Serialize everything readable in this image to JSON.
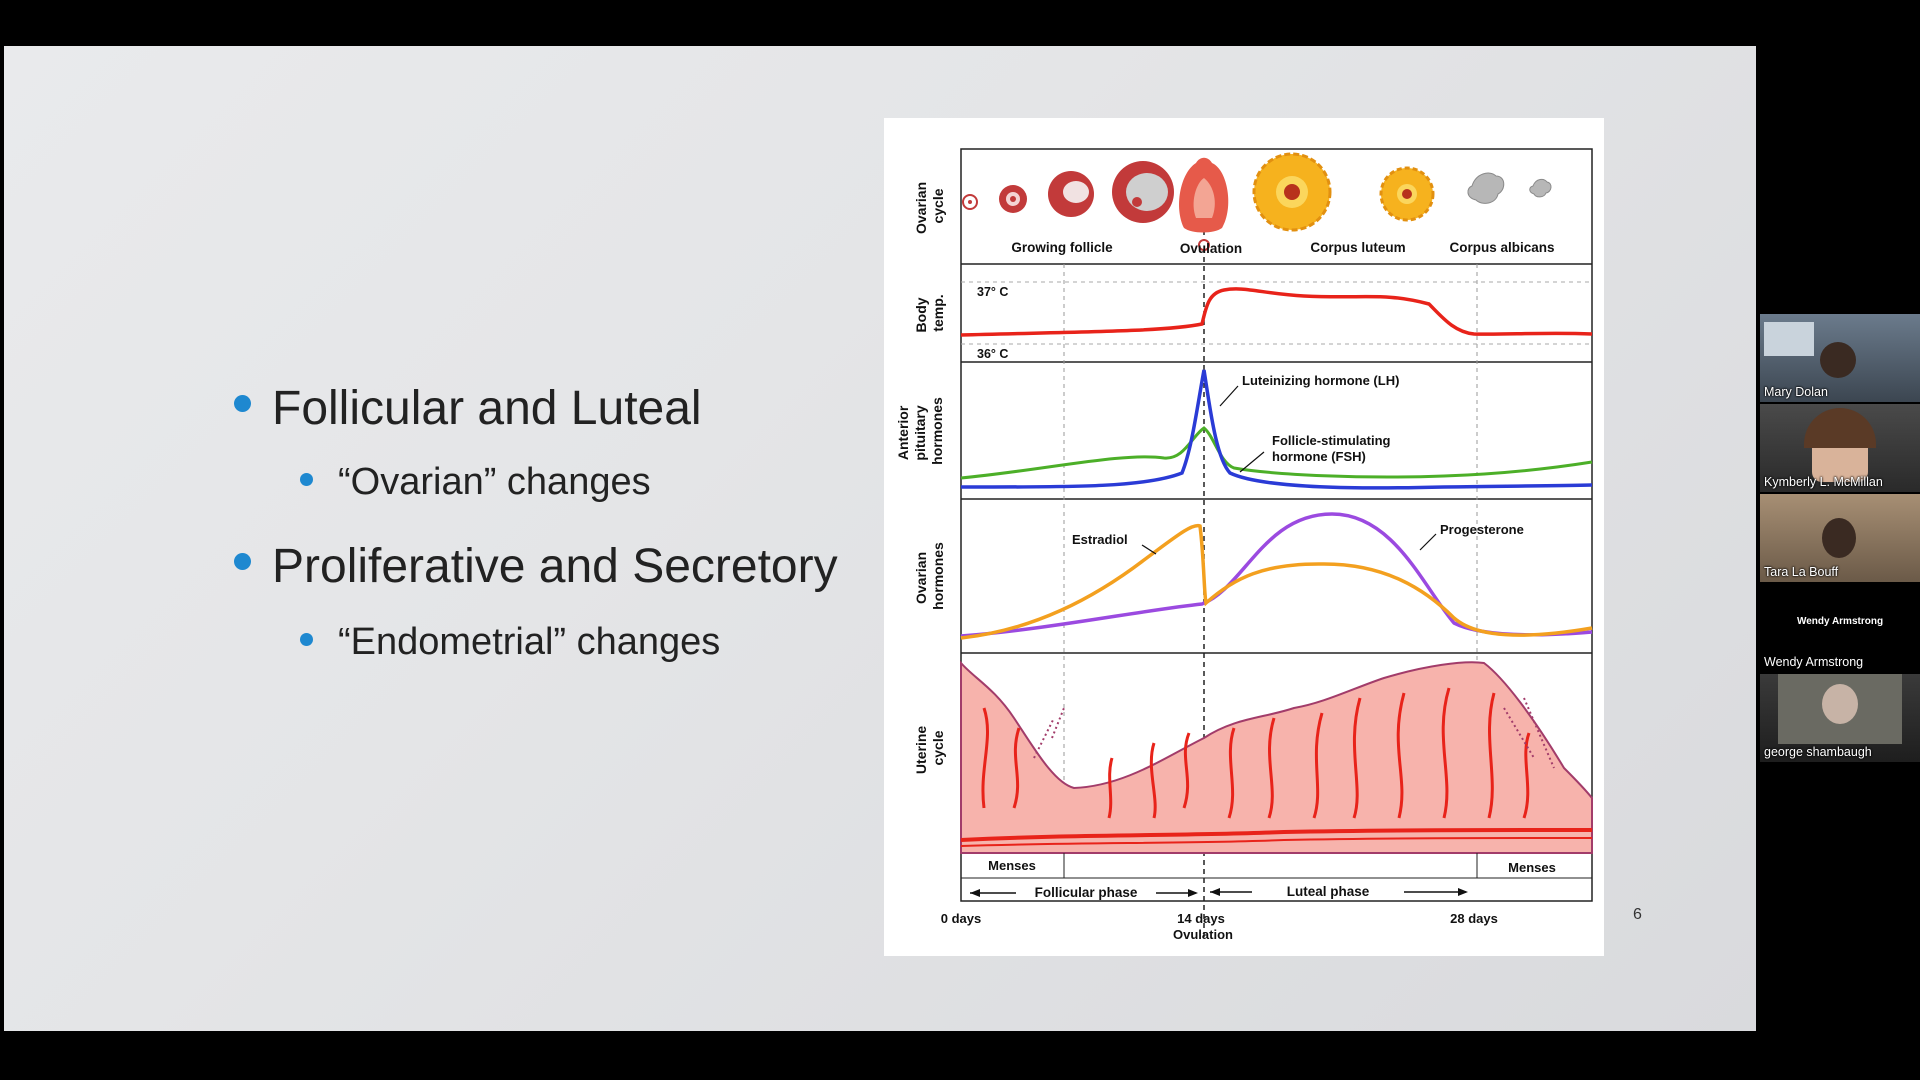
{
  "slide": {
    "bullets": [
      {
        "level": 1,
        "text": "Follicular and Luteal"
      },
      {
        "level": 2,
        "text": "“Ovarian” changes"
      },
      {
        "level": 1,
        "text": "Proliferative and Secretory"
      },
      {
        "level": 2,
        "text": "“Endometrial” changes"
      }
    ],
    "slide_number": "6",
    "accent_color": "#1e88d0"
  },
  "figure": {
    "row_labels": {
      "ovarian_cycle": [
        "Ovarian",
        "cycle"
      ],
      "body_temp": [
        "Body",
        "temp."
      ],
      "anterior_pituitary": [
        "Anterior",
        "pituitary",
        "hormones"
      ],
      "ovarian_hormones": [
        "Ovarian",
        "hormones"
      ],
      "uterine_cycle": [
        "Uterine",
        "cycle"
      ]
    },
    "stage_labels": {
      "growing_follicle": "Growing follicle",
      "ovulation": "Ovulation",
      "corpus_luteum": "Corpus luteum",
      "corpus_albicans": "Corpus albicans"
    },
    "temp_labels": {
      "high": "37° C",
      "low": "36° C"
    },
    "curve_labels": {
      "lh": "Luteinizing hormone (LH)",
      "fsh": [
        "Follicle-stimulating",
        "hormone (FSH)"
      ],
      "estradiol": "Estradiol",
      "progesterone": "Progesterone"
    },
    "menses_label": "Menses",
    "phases": {
      "follicular": "Follicular phase",
      "luteal": "Luteal phase"
    },
    "day_labels": {
      "start": "0 days",
      "mid": "14 days",
      "ovulation": "Ovulation",
      "end": "28 days"
    },
    "colors": {
      "temp": "#e8231a",
      "lh": "#2a3bd6",
      "fsh": "#4caf28",
      "estradiol": "#f3a01f",
      "progesterone": "#9b4ae0",
      "endometrium": "#f7b3ac"
    }
  },
  "participants": [
    {
      "name": "Mary Dolan"
    },
    {
      "name": "Kymberly L. McMillan"
    },
    {
      "name": "Tara La Bouff"
    },
    {
      "name": "Wendy Armstrong",
      "video": false
    },
    {
      "name": "george shambaugh"
    }
  ]
}
